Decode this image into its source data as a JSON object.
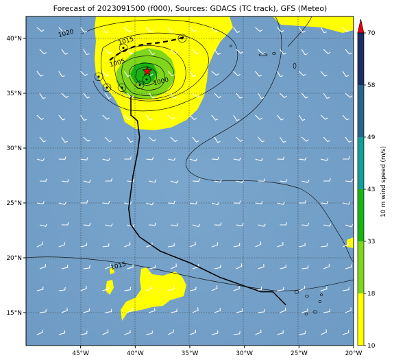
{
  "title": "Forecast of 2023091500 (f000), Sources: GDACS (TC track), GFS (Meteo)",
  "map": {
    "lon_range": [
      -50,
      -20
    ],
    "lat_range": [
      12,
      42
    ],
    "lat_ticks": [
      {
        "value": 40,
        "label": "40°N"
      },
      {
        "value": 35,
        "label": "35°N"
      },
      {
        "value": 30,
        "label": "30°N"
      },
      {
        "value": 25,
        "label": "25°N"
      },
      {
        "value": 20,
        "label": "20°N"
      },
      {
        "value": 15,
        "label": "15°N"
      }
    ],
    "lon_ticks": [
      {
        "value": -45,
        "label": "45°W"
      },
      {
        "value": -40,
        "label": "40°W"
      },
      {
        "value": -35,
        "label": "35°W"
      },
      {
        "value": -30,
        "label": "30°W"
      },
      {
        "value": -25,
        "label": "25°W"
      },
      {
        "value": -20,
        "label": "20°W"
      }
    ],
    "isobar_labels": [
      {
        "text": "1020",
        "lon": -46.3,
        "lat": 40.3
      },
      {
        "text": "1015",
        "lon": -40.8,
        "lat": 39.6
      },
      {
        "text": "1005",
        "lon": -41.6,
        "lat": 37.6
      },
      {
        "text": "1000",
        "lon": -37.6,
        "lat": 35.9
      },
      {
        "text": "1015",
        "lon": -41.5,
        "lat": 19.1
      }
    ],
    "track": [
      [
        -40.4,
        34.7
      ],
      [
        -40.4,
        33.0
      ],
      [
        -39.8,
        32.5
      ],
      [
        -39.6,
        31.0
      ],
      [
        -39.8,
        29.5
      ],
      [
        -40.2,
        27.5
      ],
      [
        -40.6,
        24.5
      ],
      [
        -40.4,
        23.0
      ],
      [
        -39.6,
        21.9
      ],
      [
        -37.7,
        20.6
      ],
      [
        -34.9,
        19.5
      ],
      [
        -32.2,
        18.2
      ],
      [
        -28.5,
        16.9
      ],
      [
        -27.4,
        16.9
      ],
      [
        -26.2,
        15.7
      ]
    ],
    "center": {
      "lon": -38.9,
      "lat": 37.0,
      "color": "#e8000b"
    }
  },
  "colorbar": {
    "label": "10 m wind speed (m/s)",
    "ticks": [
      "10",
      "18",
      "33",
      "43",
      "49",
      "58",
      "70"
    ],
    "colors": [
      "#ffff00",
      "#7fd61b",
      "#19b414",
      "#139e96",
      "#29638e",
      "#1b2d63"
    ],
    "extend_color": "#e8000b"
  },
  "colors": {
    "ocean": "#6f9ec7",
    "wind_yellow": "#ffff00",
    "wind_green": "#7fd61b",
    "wind_dark_green": "#19b414"
  }
}
